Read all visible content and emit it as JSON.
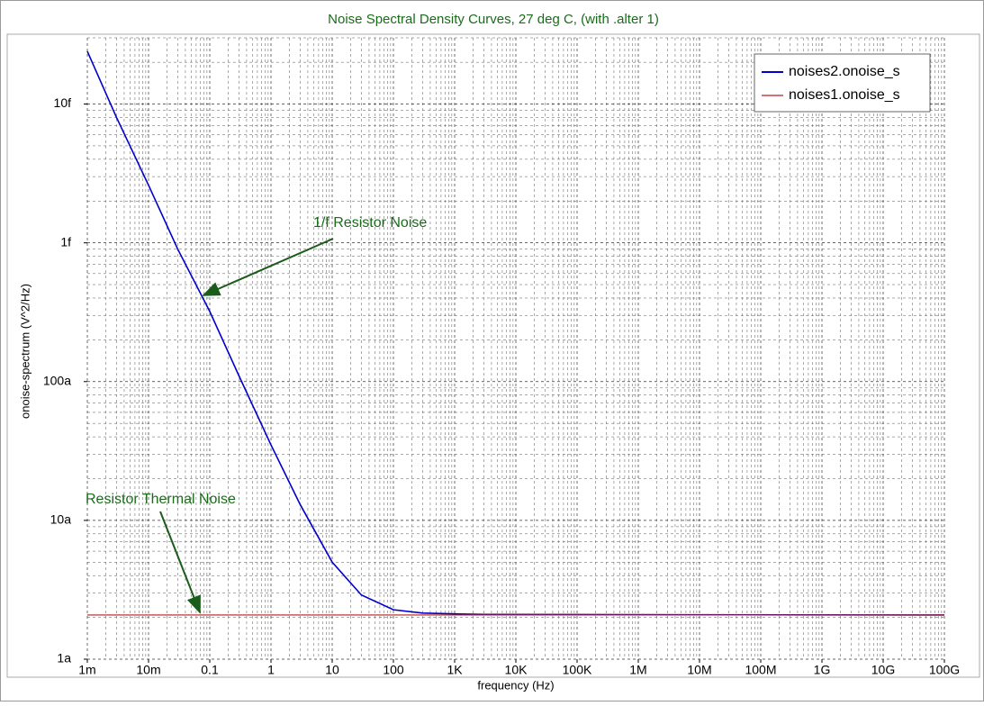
{
  "chart_data": {
    "type": "line",
    "title": "Noise Spectral Density Curves, 27 deg C, (with .alter 1)",
    "x_label": "frequency (Hz)",
    "y_label": "onoise-spectrum (V^2/Hz)",
    "log_x": true,
    "log_y": true,
    "grid": true,
    "legend": "upper right",
    "series": [
      {
        "name": "noises2.onoise_s",
        "color": "#0000cc",
        "x": [
          0.001,
          0.003,
          0.01,
          0.03,
          0.1,
          0.3,
          1,
          3,
          10,
          30,
          100,
          300,
          1000,
          3000,
          100000000000
        ],
        "values": [
          2.4e-14,
          8e-15,
          2.6e-15,
          9e-16,
          3.2e-16,
          1.1e-16,
          3.5e-17,
          1.3e-17,
          5e-18,
          2.9e-18,
          2.27e-18,
          2.15e-18,
          2.12e-18,
          2.1e-18,
          2.08e-18
        ]
      },
      {
        "name": "noises1.onoise_s",
        "color": "#b22222",
        "x": [
          0.001,
          100000000000
        ],
        "values": [
          2.08e-18,
          2.08e-18
        ]
      }
    ],
    "annotations": [
      "1/f Resistor Noise",
      "Resistor Thermal Noise"
    ],
    "xlim": [
      0.001,
      100000000000
    ],
    "xticks": [
      {
        "value": 0.001,
        "label": "1m"
      },
      {
        "value": 0.01,
        "label": "10m"
      },
      0.1,
      1,
      10,
      100,
      {
        "value": 1000,
        "label": "1K"
      },
      {
        "value": 10000,
        "label": "10K"
      },
      {
        "value": 100000,
        "label": "100K"
      },
      {
        "value": 1000000,
        "label": "1M"
      },
      {
        "value": 10000000,
        "label": "10M"
      },
      {
        "value": 100000000,
        "label": "100M"
      },
      {
        "value": 1000000000,
        "label": "1G"
      },
      {
        "value": 10000000000,
        "label": "10G"
      },
      {
        "value": 100000000000,
        "label": "100G"
      }
    ],
    "ylim": [
      1e-18,
      3e-14
    ],
    "yticks": [
      {
        "value": 1e-18,
        "label": "1a"
      },
      {
        "value": 1e-17,
        "label": "10a"
      },
      {
        "value": 1e-16,
        "label": "100a"
      },
      {
        "value": 1e-15,
        "label": "1f"
      },
      {
        "value": 1e-14,
        "label": "10f"
      }
    ]
  }
}
